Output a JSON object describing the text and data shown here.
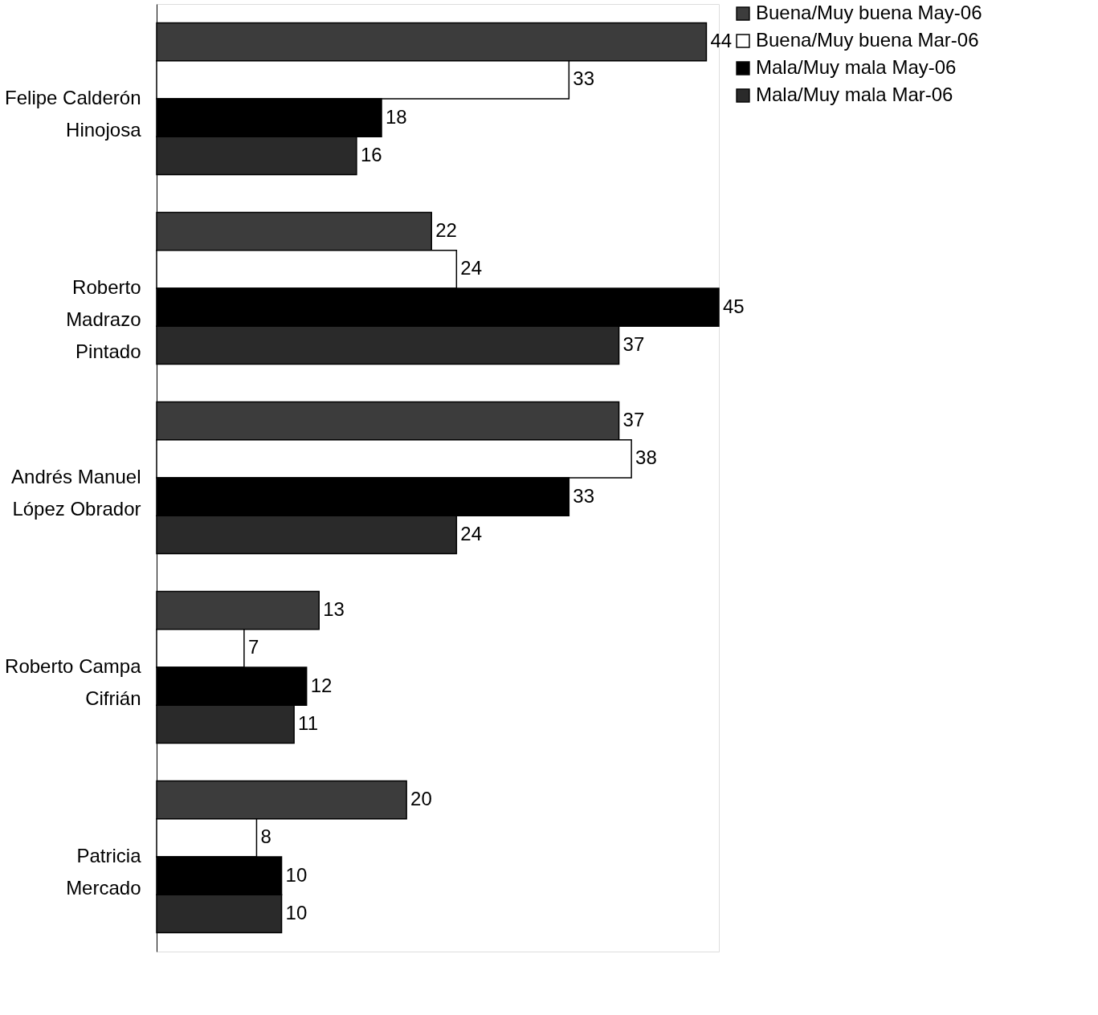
{
  "chart_data": {
    "type": "bar",
    "orientation": "horizontal",
    "categories": [
      "Felipe Calderón\nHinojosa",
      "Roberto\nMadrazo\nPintado",
      "Andrés Manuel\nLópez Obrador",
      "Roberto Campa\nCifrián",
      "Patricia\nMercado"
    ],
    "series": [
      {
        "name": "Buena/Muy buena May-06",
        "color": "#3c3c3c",
        "values": [
          44,
          22,
          37,
          13,
          20
        ]
      },
      {
        "name": "Buena/Muy buena Mar-06",
        "color": "#ffffff",
        "values": [
          33,
          24,
          38,
          7,
          8
        ]
      },
      {
        "name": "Mala/Muy mala May-06",
        "color": "#000000",
        "values": [
          18,
          45,
          33,
          12,
          10
        ]
      },
      {
        "name": "Mala/Muy mala Mar-06",
        "color": "#2a2a2a",
        "values": [
          16,
          37,
          24,
          11,
          10
        ]
      }
    ],
    "data_labels": true,
    "legend": "right"
  }
}
